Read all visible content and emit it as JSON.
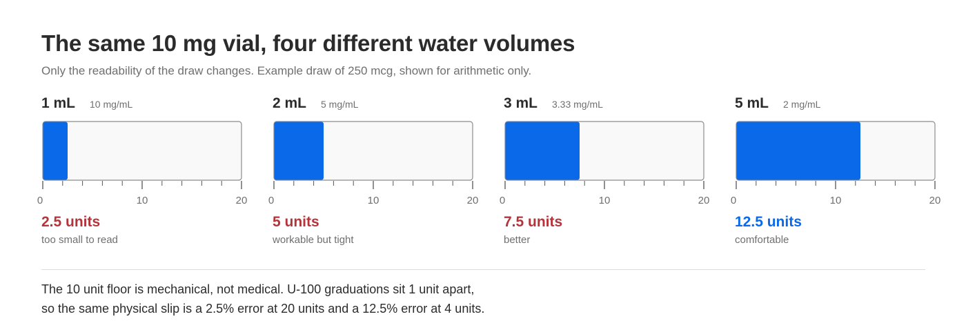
{
  "title": "The same 10 mg vial, four different water volumes",
  "subtitle": "Only the readability of the draw changes. Example draw of 250 mcg, shown for arithmetic only.",
  "colors": {
    "fill": "#0a69e8",
    "track_bg": "#f9f9f9",
    "track_border": "#8c8c8c",
    "warning": "#b5343a",
    "good": "#0a69e8"
  },
  "chart_data": {
    "type": "bar",
    "categories": [
      "1 mL",
      "2 mL",
      "3 mL",
      "5 mL"
    ],
    "concentrations": [
      "10 mg/mL",
      "5 mg/mL",
      "3.33 mg/mL",
      "2 mg/mL"
    ],
    "values": [
      2.5,
      5,
      7.5,
      12.5
    ],
    "value_labels": [
      "2.5 units",
      "5 units",
      "7.5 units",
      "12.5 units"
    ],
    "notes": [
      "too small to read",
      "workable but tight",
      "better",
      "comfortable"
    ],
    "status": [
      "warning",
      "warning",
      "warning",
      "good"
    ],
    "xlim": [
      0,
      20
    ],
    "tick_labels": [
      "0",
      "10",
      "20"
    ],
    "minor_tick_step": 2
  },
  "footer": {
    "line1": "The 10 unit floor is mechanical, not medical. U-100 graduations sit 1 unit apart,",
    "line2": "so the same physical slip is a 2.5% error at 20 units and a 12.5% error at 4 units."
  }
}
